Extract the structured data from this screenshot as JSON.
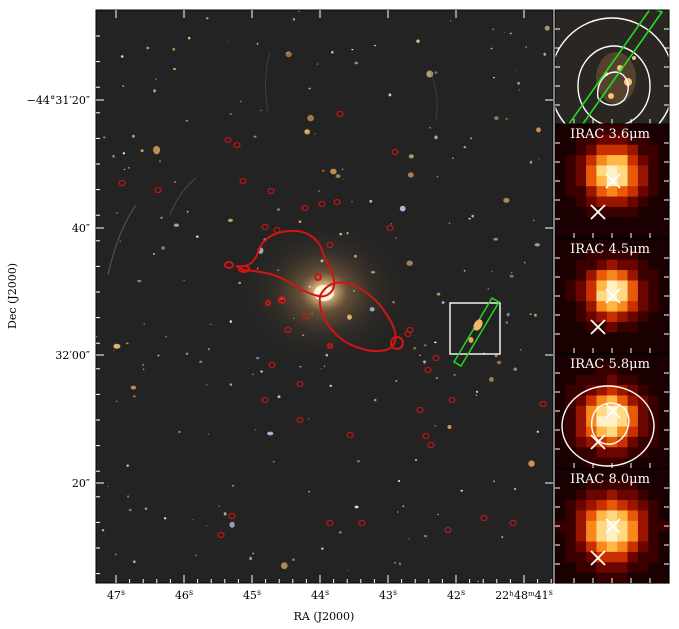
{
  "figure": {
    "xlabel": "RA (J2000)",
    "ylabel": "Dec (J2000)",
    "ra_ticks": [
      {
        "label": "47",
        "unit": "s"
      },
      {
        "label": "46",
        "unit": "s"
      },
      {
        "label": "45",
        "unit": "s"
      },
      {
        "label": "44",
        "unit": "s"
      },
      {
        "label": "43",
        "unit": "s"
      },
      {
        "label": "42",
        "unit": "s"
      },
      {
        "label": "22ʰ48ᵐ41",
        "unit": "s"
      }
    ],
    "dec_ticks": [
      {
        "label": "−44°31′20″"
      },
      {
        "label": "40″"
      },
      {
        "label": "32′00″"
      },
      {
        "label": "20″"
      }
    ],
    "panels": [
      {
        "title": ""
      },
      {
        "title": "IRAC 3.6μm"
      },
      {
        "title": "IRAC 4.5μm"
      },
      {
        "title": "IRAC 5.8μm"
      },
      {
        "title": "IRAC 8.0μm"
      }
    ],
    "colors": {
      "critical_curve": "#d21414",
      "slit": "#22dd22",
      "contour": "#ffffff",
      "sky": "#232323"
    }
  }
}
